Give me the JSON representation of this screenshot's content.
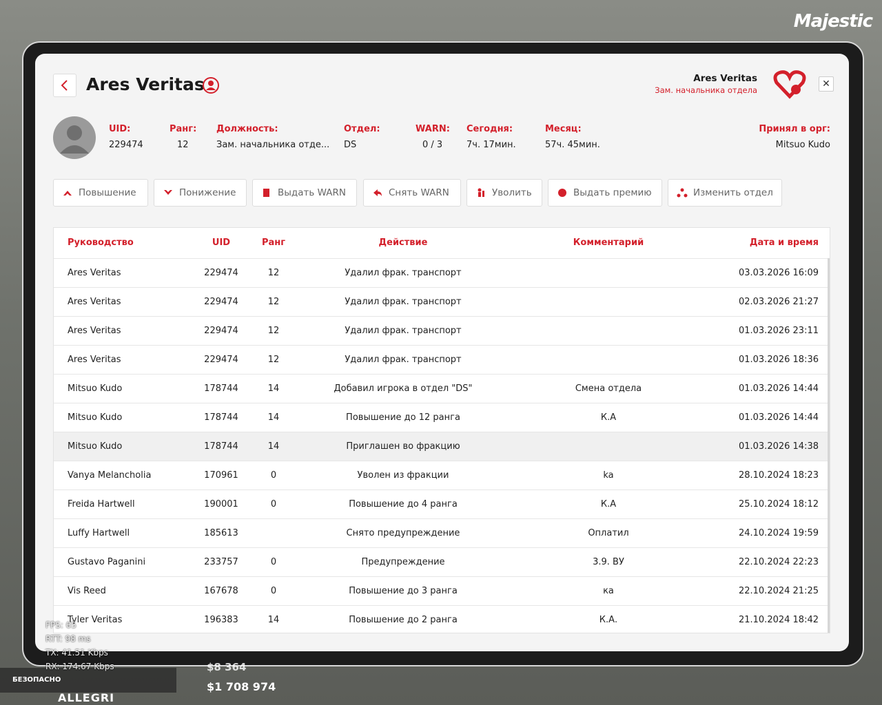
{
  "background": {
    "brand": "Majestic",
    "player_tag": "ALLEGRI",
    "money_cash": "$1 708 974",
    "money_bank": "$8 364",
    "safe_zone": "БЕЗОПАСНО",
    "stats": [
      "FPS: 65",
      "RTT: 98 ms",
      "TX: 41.51 Kbps",
      "RX: 174.67 Kbps"
    ]
  },
  "header": {
    "title": "Ares Veritas",
    "user_name": "Ares Veritas",
    "user_role": "Зам. начальника отдела"
  },
  "profile": {
    "fields": [
      {
        "label": "UID:",
        "value": "229474"
      },
      {
        "label": "Ранг:",
        "value": "12"
      },
      {
        "label": "Должность:",
        "value": "Зам. начальника отде..."
      },
      {
        "label": "Отдел:",
        "value": "DS"
      },
      {
        "label": "WARN:",
        "value": "0 / 3"
      },
      {
        "label": "Сегодня:",
        "value": "7ч. 17мин."
      },
      {
        "label": "Месяц:",
        "value": "57ч. 45мин."
      },
      {
        "label": "Принял в орг:",
        "value": "Mitsuo Kudo"
      }
    ]
  },
  "buttons": [
    "Повышение",
    "Понижение",
    "Выдать WARN",
    "Снять WARN",
    "Уволить",
    "Выдать премию",
    "Изменить отдел"
  ],
  "table": {
    "columns": [
      "Руководство",
      "UID",
      "Ранг",
      "Действие",
      "Комментарий",
      "Дата и время"
    ],
    "rows": [
      [
        "Ares Veritas",
        "229474",
        "12",
        "Удалил фрак. транспорт",
        null,
        "03.03.2026 16:09"
      ],
      [
        "Ares Veritas",
        "229474",
        "12",
        "Удалил фрак. транспорт",
        null,
        "02.03.2026 21:27"
      ],
      [
        "Ares Veritas",
        "229474",
        "12",
        "Удалил фрак. транспорт",
        null,
        "01.03.2026 23:11"
      ],
      [
        "Ares Veritas",
        "229474",
        "12",
        "Удалил фрак. транспорт",
        null,
        "01.03.2026 18:36"
      ],
      [
        "Mitsuo Kudo",
        "178744",
        "14",
        "Добавил игрока в отдел \"DS\"",
        "Смена отдела",
        "01.03.2026 14:44"
      ],
      [
        "Mitsuo Kudo",
        "178744",
        "14",
        "Повышение до 12 ранга",
        "К.А",
        "01.03.2026 14:44"
      ],
      [
        "Mitsuo Kudo",
        "178744",
        "14",
        "Приглашен во фракцию",
        null,
        "01.03.2026 14:38"
      ],
      [
        "Vanya Melancholia",
        "170961",
        "0",
        "Уволен из фракции",
        "ka",
        "28.10.2024 18:23"
      ],
      [
        "Freida Hartwell",
        "190001",
        "0",
        "Повышение до 4 ранга",
        "К.А",
        "25.10.2024 18:12"
      ],
      [
        "Luffy Hartwell",
        "185613",
        null,
        "Снято предупреждение",
        "Оплатил",
        "24.10.2024 19:59"
      ],
      [
        "Gustavo Paganini",
        "233757",
        "0",
        "Предупреждение",
        "3.9. ВУ",
        "22.10.2024 22:23"
      ],
      [
        "Vis Reed",
        "167678",
        "0",
        "Повышение до 3 ранга",
        "ка",
        "22.10.2024 21:25"
      ],
      [
        "Tyler Veritas",
        "196383",
        "14",
        "Повышение до 2 ранга",
        "К.А.",
        "21.10.2024 18:42"
      ]
    ],
    "highlighted_row": 6
  }
}
